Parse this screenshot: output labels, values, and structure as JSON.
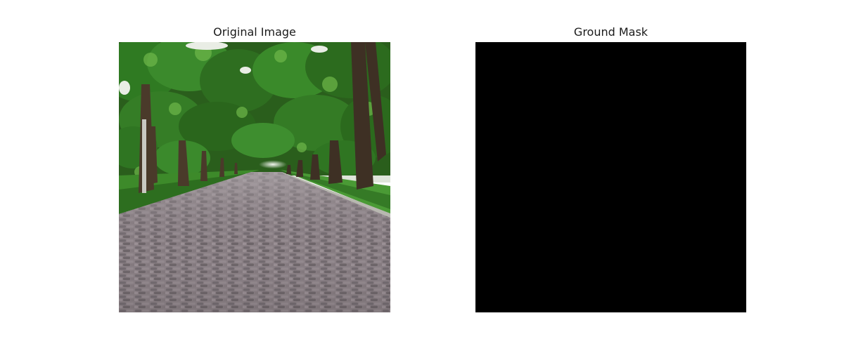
{
  "figure": {
    "left_title": "Original Image",
    "right_title": "Ground Mask"
  },
  "panels": {
    "left": {
      "kind": "photo",
      "content": "tree-lined cobblestone road",
      "colors": {
        "sky": "#e8ece6",
        "foliage_dark": "#1f4a14",
        "foliage_mid": "#2f7a22",
        "foliage_light": "#5aa83a",
        "grass": "#3d8a2a",
        "trunk": "#4a3a2a",
        "cobble": "#7d7378",
        "cobble_dark": "#5a5257"
      }
    },
    "right": {
      "kind": "mask",
      "fill_color": "#000000"
    }
  }
}
